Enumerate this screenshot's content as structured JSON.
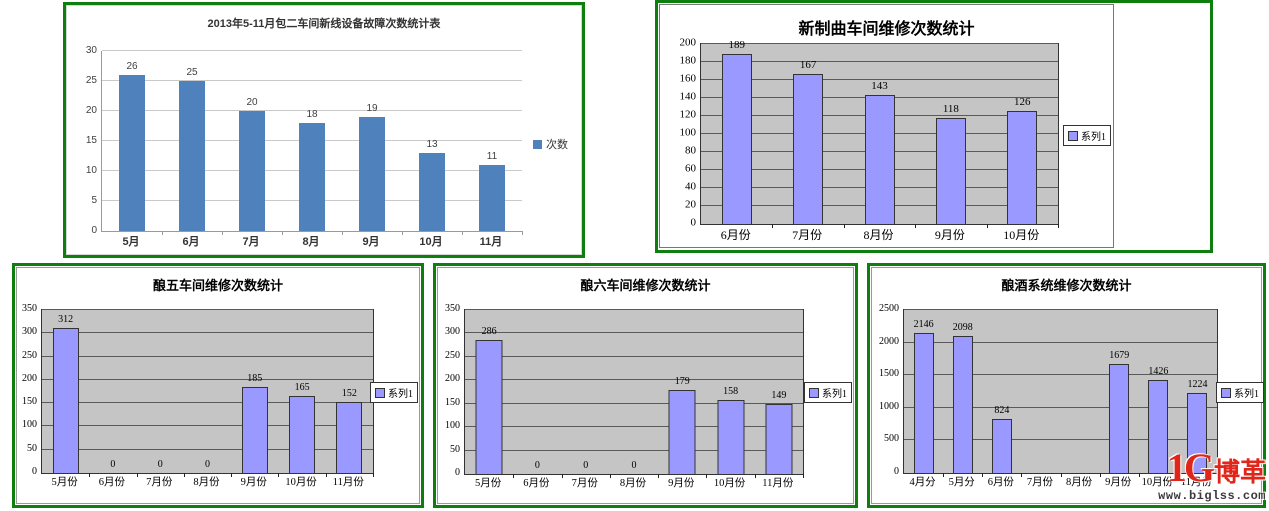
{
  "watermark": {
    "logo_text": "1G",
    "brand": "博革",
    "url": "www.biglss.com",
    "color": "#e0261a"
  },
  "chart_data": [
    {
      "type": "bar",
      "title": "2013年5-11月包二车间新线设备故障次数统计表",
      "categories": [
        "5月",
        "6月",
        "7月",
        "8月",
        "9月",
        "10月",
        "11月"
      ],
      "values": [
        26,
        25,
        20,
        18,
        19,
        13,
        11
      ],
      "ylim": [
        0,
        30
      ],
      "ytick_step": 5,
      "legend": "次数",
      "legend_position": "right",
      "grid": true,
      "bar_color": "#4f81bd",
      "plot_bg": "#ffffff"
    },
    {
      "type": "bar",
      "title": "新制曲车间维修次数统计",
      "categories": [
        "6月份",
        "7月份",
        "8月份",
        "9月份",
        "10月份"
      ],
      "values": [
        189,
        167,
        143,
        118,
        126
      ],
      "ylim": [
        0,
        200
      ],
      "ytick_step": 20,
      "legend": "系列1",
      "legend_position": "right",
      "grid": true,
      "bar_color": "#9999ff",
      "plot_bg": "#c5c5c5"
    },
    {
      "type": "bar",
      "title": "酿五车间维修次数统计",
      "categories": [
        "5月份",
        "6月份",
        "7月份",
        "8月份",
        "9月份",
        "10月份",
        "11月份"
      ],
      "values": [
        312,
        0,
        0,
        0,
        185,
        165,
        152
      ],
      "ylim": [
        0,
        350
      ],
      "ytick_step": 50,
      "legend": "系列1",
      "legend_position": "right",
      "grid": true,
      "bar_color": "#9999ff",
      "plot_bg": "#c5c5c5"
    },
    {
      "type": "bar",
      "title": "酿六车间维修次数统计",
      "categories": [
        "5月份",
        "6月份",
        "7月份",
        "8月份",
        "9月份",
        "10月份",
        "11月份"
      ],
      "values": [
        286,
        0,
        0,
        0,
        179,
        158,
        149
      ],
      "ylim": [
        0,
        350
      ],
      "ytick_step": 50,
      "legend": "系列1",
      "legend_position": "right",
      "grid": true,
      "bar_color": "#9999ff",
      "plot_bg": "#c5c5c5"
    },
    {
      "type": "bar",
      "title": "酿酒系统维修次数统计",
      "categories": [
        "4月分",
        "5月分",
        "6月份",
        "7月份",
        "8月份",
        "9月份",
        "10月份",
        "11月份"
      ],
      "values": [
        2146,
        2098,
        824,
        null,
        null,
        1679,
        1426,
        1224
      ],
      "ylim": [
        0,
        2500
      ],
      "ytick_step": 500,
      "legend": "系列1",
      "legend_position": "right",
      "grid": true,
      "bar_color": "#9999ff",
      "plot_bg": "#c5c5c5"
    }
  ]
}
